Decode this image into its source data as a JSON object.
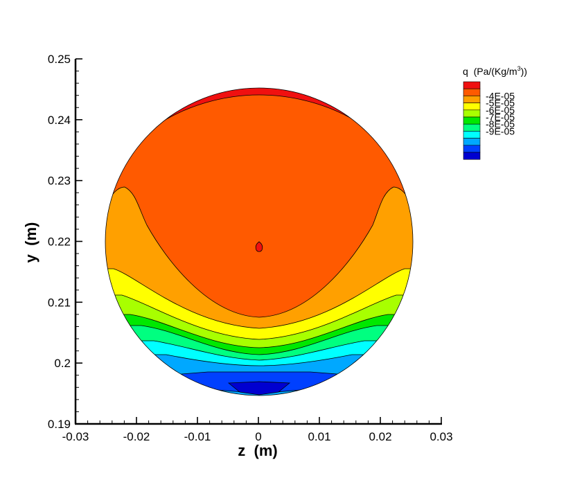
{
  "chart_data": {
    "type": "contour",
    "xlabel": "z  (m)",
    "ylabel": "y  (m)",
    "xlim": [
      -0.03,
      0.03
    ],
    "ylim": [
      0.19,
      0.25
    ],
    "x_ticks": [
      "-0.03",
      "-0.02",
      "-0.01",
      "0",
      "0.01",
      "0.02",
      "0.03"
    ],
    "y_ticks": [
      "0.19",
      "0.2",
      "0.21",
      "0.22",
      "0.23",
      "0.24",
      "0.25"
    ],
    "domain": {
      "shape": "circle",
      "center": [
        0,
        0.22
      ],
      "radius": 0.025
    },
    "legend": {
      "title_prefix": "q  (Pa/(Kg/m",
      "title_sup": "3",
      "title_suffix": "))",
      "labels": [
        "-4E-05",
        "-5E-05",
        "-6E-05",
        "-7E-05",
        "-8E-05",
        "-9E-05"
      ],
      "colors": [
        "#f01010",
        "#ff5a00",
        "#ffa000",
        "#ffff00",
        "#a8ff00",
        "#00e800",
        "#00ff80",
        "#00ffff",
        "#00a8ff",
        "#0040ff",
        "#0000d0"
      ]
    },
    "contour_levels": [
      -3.5e-05,
      -4e-05,
      -4.5e-05,
      -5e-05,
      -5.5e-05,
      -6e-05,
      -6.5e-05,
      -7e-05,
      -7.5e-05,
      -8e-05,
      -8.5e-05
    ],
    "bands": [
      {
        "level_min": -4e-05,
        "level_max": -3.5e-05,
        "color": "#f01010",
        "region": "top rim and small spot near center (0, 0.219)"
      },
      {
        "level_min": -4.5e-05,
        "level_max": -4e-05,
        "color": "#ff5a00",
        "region": "upper interior"
      },
      {
        "level_min": -5e-05,
        "level_max": -4.5e-05,
        "color": "#ffa000",
        "region": "side lobes and crescent"
      },
      {
        "level_min": -5.5e-05,
        "level_max": -5e-05,
        "color": "#ffff00"
      },
      {
        "level_min": -6e-05,
        "level_max": -5.5e-05,
        "color": "#a8ff00"
      },
      {
        "level_min": -6.5e-05,
        "level_max": -6e-05,
        "color": "#00e800"
      },
      {
        "level_min": -7e-05,
        "level_max": -6.5e-05,
        "color": "#00ff80"
      },
      {
        "level_min": -7.5e-05,
        "level_max": -7e-05,
        "color": "#00ffff"
      },
      {
        "level_min": -8e-05,
        "level_max": -7.5e-05,
        "color": "#00a8ff"
      },
      {
        "level_min": -8.5e-05,
        "level_max": -8e-05,
        "color": "#0040ff"
      },
      {
        "level_min": -9e-05,
        "level_max": -8.5e-05,
        "color": "#0000d0",
        "region": "bottom near (0, 0.196)"
      }
    ]
  }
}
